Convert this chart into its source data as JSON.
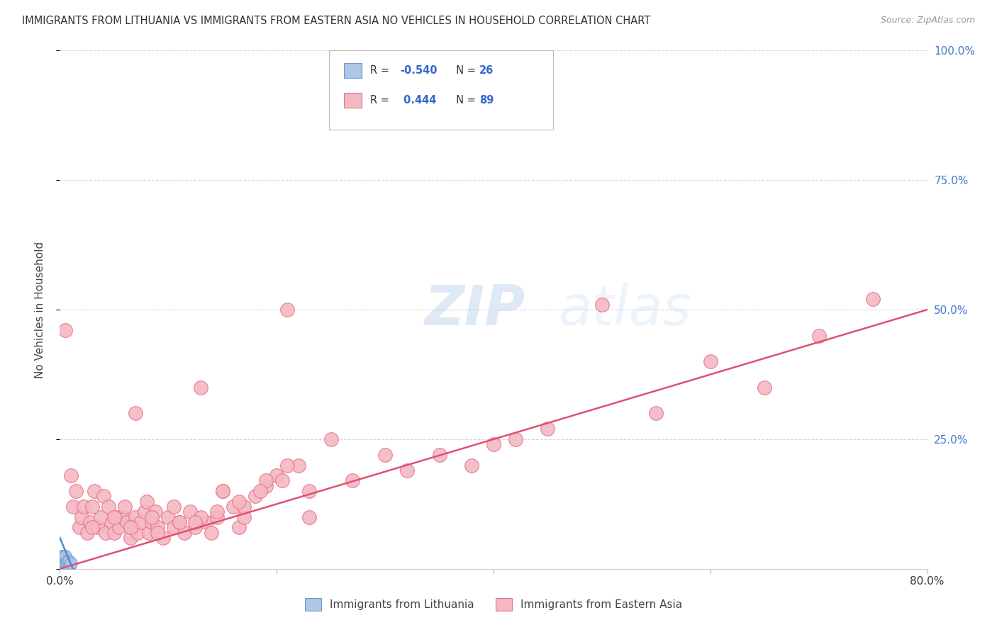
{
  "title": "IMMIGRANTS FROM LITHUANIA VS IMMIGRANTS FROM EASTERN ASIA NO VEHICLES IN HOUSEHOLD CORRELATION CHART",
  "source": "Source: ZipAtlas.com",
  "ylabel": "No Vehicles in Household",
  "xlim": [
    0,
    0.8
  ],
  "ylim": [
    0,
    1.0
  ],
  "xtick_vals": [
    0.0,
    0.2,
    0.4,
    0.6,
    0.8
  ],
  "xtick_labels": [
    "0.0%",
    "",
    "",
    "",
    "80.0%"
  ],
  "ytick_vals": [
    0.0,
    0.25,
    0.5,
    0.75,
    1.0
  ],
  "ytick_labels_right": [
    "",
    "25.0%",
    "50.0%",
    "75.0%",
    "100.0%"
  ],
  "background_color": "#ffffff",
  "grid_color": "#cccccc",
  "lithuania_color": "#aec6e8",
  "eastern_asia_color": "#f4b8c1",
  "lithuania_edge": "#6699cc",
  "eastern_asia_edge": "#e87090",
  "trend_lithuania_color": "#5588cc",
  "trend_eastern_asia_color": "#e05070",
  "watermark": "ZIPatlas",
  "legend_label1": "Immigrants from Lithuania",
  "legend_label2": "Immigrants from Eastern Asia",
  "ea_trend_x0": 0.0,
  "ea_trend_y0": 0.0,
  "ea_trend_x1": 0.8,
  "ea_trend_y1": 0.5,
  "lith_trend_x0": 0.0,
  "lith_trend_y0": 0.06,
  "lith_trend_x1": 0.012,
  "lith_trend_y1": 0.0,
  "lithuania_x": [
    0.0005,
    0.0008,
    0.001,
    0.001,
    0.0012,
    0.0015,
    0.002,
    0.002,
    0.0022,
    0.0025,
    0.003,
    0.003,
    0.003,
    0.0032,
    0.0035,
    0.004,
    0.004,
    0.0042,
    0.005,
    0.005,
    0.006,
    0.006,
    0.007,
    0.008,
    0.009,
    0.01
  ],
  "lithuania_y": [
    0.005,
    0.01,
    0.015,
    0.02,
    0.008,
    0.012,
    0.018,
    0.025,
    0.01,
    0.015,
    0.02,
    0.025,
    0.005,
    0.01,
    0.02,
    0.015,
    0.008,
    0.02,
    0.01,
    0.025,
    0.015,
    0.005,
    0.01,
    0.015,
    0.005,
    0.01
  ],
  "eastern_asia_x": [
    0.005,
    0.01,
    0.012,
    0.015,
    0.018,
    0.02,
    0.022,
    0.025,
    0.028,
    0.03,
    0.032,
    0.035,
    0.038,
    0.04,
    0.042,
    0.045,
    0.048,
    0.05,
    0.052,
    0.055,
    0.058,
    0.06,
    0.062,
    0.065,
    0.068,
    0.07,
    0.072,
    0.075,
    0.078,
    0.08,
    0.082,
    0.085,
    0.088,
    0.09,
    0.095,
    0.1,
    0.105,
    0.11,
    0.115,
    0.12,
    0.125,
    0.13,
    0.135,
    0.14,
    0.145,
    0.15,
    0.16,
    0.165,
    0.17,
    0.18,
    0.19,
    0.2,
    0.21,
    0.22,
    0.23,
    0.25,
    0.27,
    0.3,
    0.32,
    0.35,
    0.38,
    0.4,
    0.42,
    0.45,
    0.5,
    0.55,
    0.6,
    0.65,
    0.7,
    0.75,
    0.03,
    0.05,
    0.07,
    0.09,
    0.11,
    0.13,
    0.15,
    0.17,
    0.19,
    0.21,
    0.065,
    0.085,
    0.105,
    0.125,
    0.145,
    0.165,
    0.185,
    0.205,
    0.23
  ],
  "eastern_asia_y": [
    0.46,
    0.18,
    0.12,
    0.15,
    0.08,
    0.1,
    0.12,
    0.07,
    0.09,
    0.12,
    0.15,
    0.08,
    0.1,
    0.14,
    0.07,
    0.12,
    0.09,
    0.07,
    0.1,
    0.08,
    0.1,
    0.12,
    0.09,
    0.06,
    0.08,
    0.1,
    0.07,
    0.09,
    0.11,
    0.13,
    0.07,
    0.09,
    0.11,
    0.08,
    0.06,
    0.1,
    0.08,
    0.09,
    0.07,
    0.11,
    0.08,
    0.35,
    0.09,
    0.07,
    0.1,
    0.15,
    0.12,
    0.08,
    0.1,
    0.14,
    0.16,
    0.18,
    0.5,
    0.2,
    0.15,
    0.25,
    0.17,
    0.22,
    0.19,
    0.22,
    0.2,
    0.24,
    0.25,
    0.27,
    0.51,
    0.3,
    0.4,
    0.35,
    0.45,
    0.52,
    0.08,
    0.1,
    0.3,
    0.07,
    0.09,
    0.1,
    0.15,
    0.12,
    0.17,
    0.2,
    0.08,
    0.1,
    0.12,
    0.09,
    0.11,
    0.13,
    0.15,
    0.17,
    0.1
  ]
}
